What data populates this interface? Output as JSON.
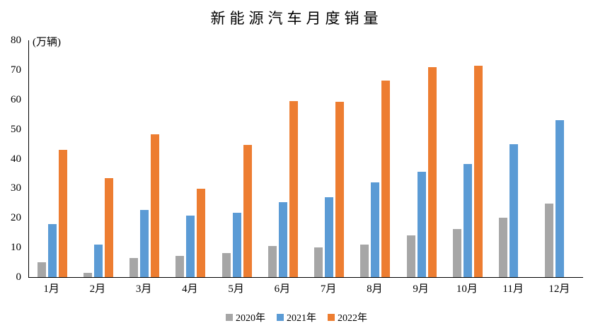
{
  "page": {
    "background_color": "#FFFFFF",
    "text_color": "#000000",
    "axis_color": "#000000"
  },
  "chart_data": {
    "type": "bar",
    "title": "新能源汽车月度销量",
    "y_unit_label": "(万辆)",
    "xlabel": "",
    "ylabel": "",
    "categories": [
      "1月",
      "2月",
      "3月",
      "4月",
      "5月",
      "6月",
      "7月",
      "8月",
      "9月",
      "10月",
      "11月",
      "12月"
    ],
    "series": [
      {
        "name": "2020年",
        "color": "#A6A6A6",
        "values": [
          5,
          1.5,
          6.5,
          7.2,
          8.2,
          10.5,
          10,
          11,
          14,
          16.3,
          20,
          24.8
        ]
      },
      {
        "name": "2021年",
        "color": "#5B9BD5",
        "values": [
          17.9,
          11.1,
          22.6,
          20.7,
          21.7,
          25.4,
          27.1,
          32,
          35.6,
          38.2,
          45,
          53
        ]
      },
      {
        "name": "2022年",
        "color": "#ED7D31",
        "values": [
          43.1,
          33.4,
          48.3,
          29.8,
          44.7,
          59.5,
          59.2,
          66.5,
          71,
          71.4,
          null,
          null
        ]
      }
    ],
    "ylim": [
      0,
      80
    ],
    "yticks": [
      0,
      10,
      20,
      30,
      40,
      50,
      60,
      70,
      80
    ],
    "grid": false,
    "legend_position": "bottom"
  }
}
